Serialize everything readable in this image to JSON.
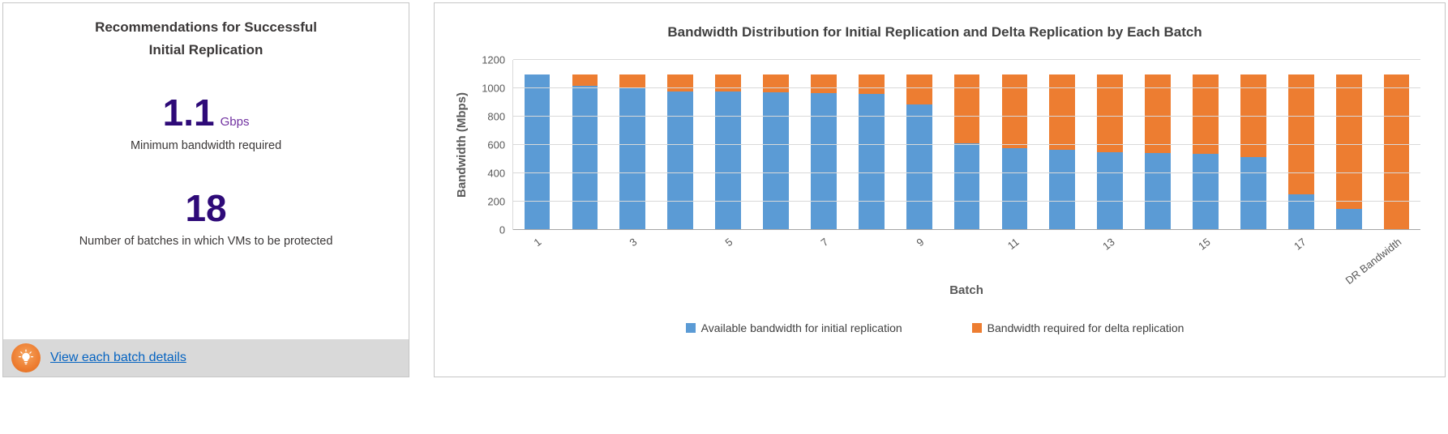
{
  "left_panel": {
    "title": "Recommendations for Successful Initial Replication",
    "bandwidth_value": "1.1",
    "bandwidth_unit": "Gbps",
    "bandwidth_caption": "Minimum bandwidth required",
    "batches_value": "18",
    "batches_caption": "Number of batches in which VMs to be protected",
    "link_label": "View each batch details",
    "accent_value_color": "#2e0a78",
    "unit_color": "#7030a0",
    "bar_background": "#d9d9d9",
    "link_color": "#0563c1",
    "bulb_icon_color": "#ed7d31"
  },
  "chart_data": {
    "type": "bar",
    "stacked": true,
    "title": "Bandwidth Distribution for Initial Replication and Delta Replication by Each Batch",
    "xlabel": "Batch",
    "ylabel": "Bandwidth (Mbps)",
    "ylim": [
      0,
      1200
    ],
    "yticks": [
      0,
      200,
      400,
      600,
      800,
      1000,
      1200
    ],
    "grid": true,
    "legend_position": "bottom",
    "categories": [
      "1",
      "2",
      "3",
      "4",
      "5",
      "6",
      "7",
      "8",
      "9",
      "10",
      "11",
      "12",
      "13",
      "14",
      "15",
      "16",
      "17",
      "18",
      "DR Bandwidth"
    ],
    "x_tick_labels_shown": [
      "1",
      "3",
      "5",
      "7",
      "9",
      "11",
      "13",
      "15",
      "17",
      "DR Bandwidth"
    ],
    "series": [
      {
        "name": "Available bandwidth for initial replication",
        "color": "#5b9bd5",
        "values": [
          1100,
          1020,
          1000,
          980,
          975,
          970,
          965,
          960,
          885,
          610,
          575,
          565,
          550,
          545,
          535,
          515,
          250,
          150,
          0
        ]
      },
      {
        "name": "Bandwidth required for delta replication",
        "color": "#ed7d31",
        "values": [
          0,
          80,
          100,
          120,
          125,
          130,
          135,
          140,
          215,
          490,
          525,
          535,
          550,
          555,
          565,
          585,
          850,
          950,
          1100
        ]
      }
    ]
  }
}
